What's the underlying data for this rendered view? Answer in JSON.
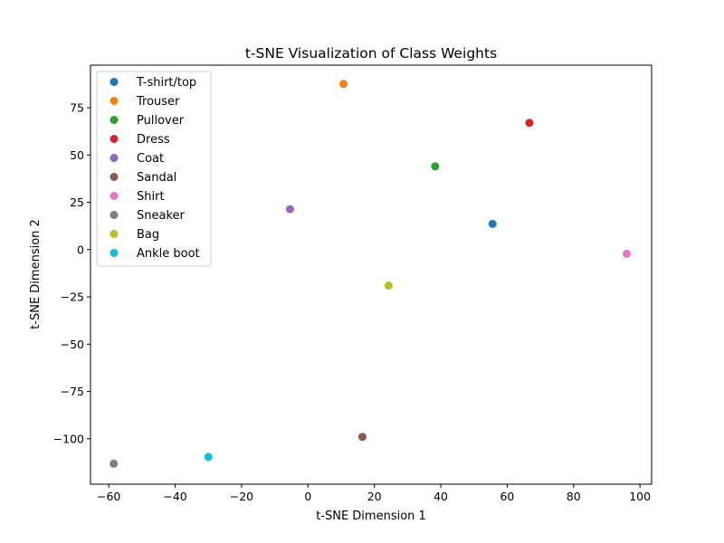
{
  "chart_data": {
    "type": "scatter",
    "title": "t-SNE Visualization of Class Weights",
    "xlabel": "t-SNE Dimension 1",
    "ylabel": "t-SNE Dimension 2",
    "xlim": [
      -65.5,
      103.5
    ],
    "ylim": [
      -124,
      97.5
    ],
    "xticks": [
      -60,
      -40,
      -20,
      0,
      20,
      40,
      60,
      80,
      100
    ],
    "yticks": [
      -100,
      -75,
      -50,
      -25,
      0,
      25,
      50,
      75
    ],
    "xtick_labels": [
      "−60",
      "−40",
      "−20",
      "0",
      "20",
      "40",
      "60",
      "80",
      "100"
    ],
    "ytick_labels": [
      "−100",
      "−75",
      "−50",
      "−25",
      "0",
      "25",
      "50",
      "75"
    ],
    "grid": false,
    "legend_position": "upper-left",
    "series": [
      {
        "name": "T-shirt/top",
        "color": "#1f77b4",
        "x": 55.6,
        "y": 13.6
      },
      {
        "name": "Trouser",
        "color": "#ff7f0e",
        "x": 10.7,
        "y": 87.6
      },
      {
        "name": "Pullover",
        "color": "#2ca02c",
        "x": 38.3,
        "y": 44.0
      },
      {
        "name": "Dress",
        "color": "#d62728",
        "x": 66.7,
        "y": 67.0
      },
      {
        "name": "Coat",
        "color": "#9467bd",
        "x": -5.4,
        "y": 21.4
      },
      {
        "name": "Sandal",
        "color": "#8c564b",
        "x": 16.4,
        "y": -99.0
      },
      {
        "name": "Shirt",
        "color": "#e377c2",
        "x": 96.0,
        "y": -2.2
      },
      {
        "name": "Sneaker",
        "color": "#7f7f7f",
        "x": -58.5,
        "y": -113.2
      },
      {
        "name": "Bag",
        "color": "#bcbd22",
        "x": 24.3,
        "y": -19.0
      },
      {
        "name": "Ankle boot",
        "color": "#17becf",
        "x": -30.0,
        "y": -109.6
      }
    ]
  }
}
